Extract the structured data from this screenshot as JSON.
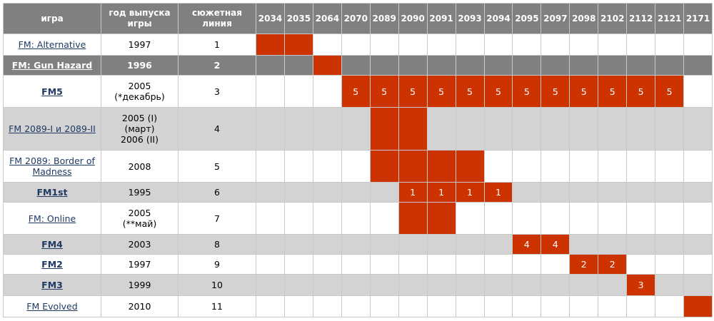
{
  "table": {
    "headers": [
      "игра",
      "год выпуска игры",
      "сюжетная линия"
    ],
    "years": [
      "2034",
      "2035",
      "2064",
      "2070",
      "2089",
      "2090",
      "2091",
      "2093",
      "2094",
      "2095",
      "2097",
      "2098",
      "2102",
      "2112",
      "2121",
      "2171"
    ],
    "mark_color": "#cc3300",
    "rows": [
      {
        "game": "FM: Alternative",
        "year": "1997",
        "line": "1",
        "bold": false,
        "style": "light",
        "years": [
          "2034",
          "2035"
        ]
      },
      {
        "game": "FM: Gun Hazard",
        "year": "1996",
        "line": "2",
        "bold": true,
        "style": "dark",
        "years": [
          "2064"
        ]
      },
      {
        "game": "FM5",
        "year": "2005\n(*декабрь)",
        "line": "3",
        "bold": true,
        "style": "light",
        "years": [
          "2070",
          "2089",
          "2090",
          "2091",
          "2093",
          "2094",
          "2095",
          "2097",
          "2098",
          "2102",
          "2112",
          "2121"
        ],
        "mark_label": "5"
      },
      {
        "game": "FM 2089-I и 2089-II",
        "year": "2005 (I)\n(март)\n2006 (II)",
        "line": "4",
        "bold": false,
        "style": "gray",
        "years": [
          "2089",
          "2090"
        ]
      },
      {
        "game": "FM 2089: Border of Madness",
        "year": "2008",
        "line": "5",
        "bold": false,
        "style": "light",
        "years": [
          "2089",
          "2090",
          "2091",
          "2093"
        ]
      },
      {
        "game": "FM1st",
        "year": "1995",
        "line": "6",
        "bold": true,
        "style": "gray",
        "years": [
          "2090",
          "2091",
          "2093",
          "2094"
        ],
        "mark_label": "1"
      },
      {
        "game": "FM: Online",
        "year": "2005\n(**май)",
        "line": "7",
        "bold": false,
        "style": "light",
        "years": [
          "2090",
          "2091"
        ]
      },
      {
        "game": "FM4",
        "year": "2003",
        "line": "8",
        "bold": true,
        "style": "gray",
        "years": [
          "2095",
          "2097"
        ],
        "mark_label": "4"
      },
      {
        "game": "FM2",
        "year": "1997",
        "line": "9",
        "bold": true,
        "style": "light",
        "years": [
          "2098",
          "2102"
        ],
        "mark_label": "2"
      },
      {
        "game": "FM3",
        "year": "1999",
        "line": "10",
        "bold": true,
        "style": "gray",
        "years": [
          "2112"
        ],
        "mark_label": "3"
      },
      {
        "game": "FM Evolved",
        "year": "2010",
        "line": "11",
        "bold": false,
        "style": "light",
        "years": [
          "2171"
        ]
      }
    ]
  }
}
